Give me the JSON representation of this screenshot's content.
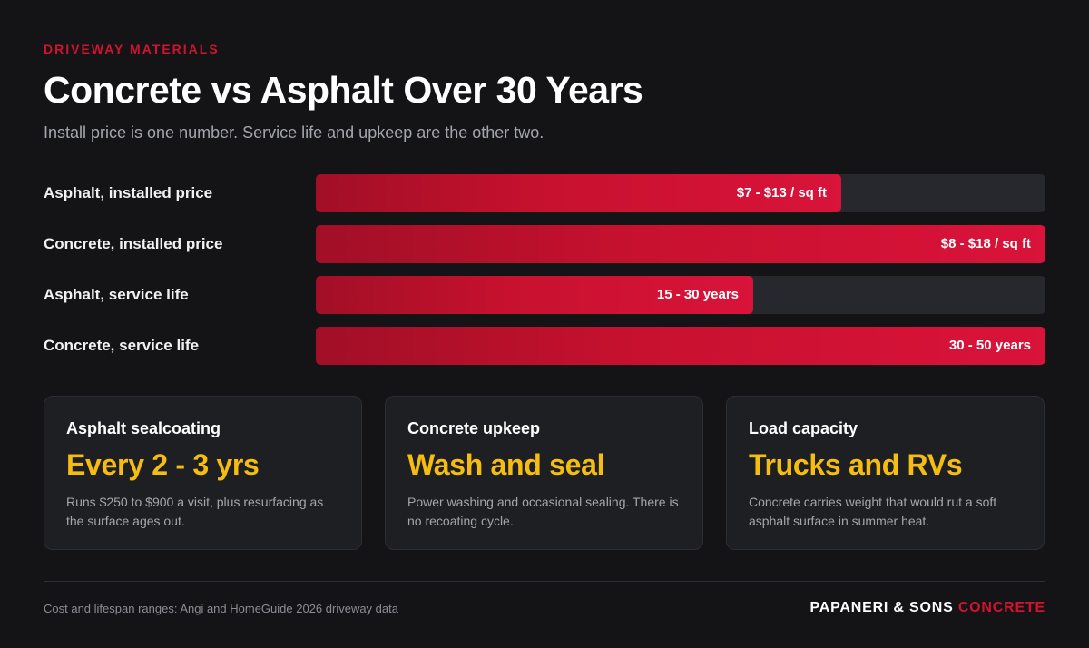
{
  "header": {
    "eyebrow": "DRIVEWAY MATERIALS",
    "title": "Concrete vs Asphalt Over 30 Years",
    "subtitle": "Install price is one number. Service life and upkeep are the other two."
  },
  "chart_data": {
    "type": "bar",
    "orientation": "horizontal",
    "grid": false,
    "categories": [
      "Asphalt, installed price",
      "Concrete, installed price",
      "Asphalt, service life",
      "Concrete, service life"
    ],
    "bars": [
      {
        "label": "Asphalt, installed price",
        "value_label": "$7 - $13 / sq ft",
        "fill_fraction": 0.72
      },
      {
        "label": "Concrete, installed price",
        "value_label": "$8 - $18 / sq ft",
        "fill_fraction": 1.0
      },
      {
        "label": "Asphalt, service life",
        "value_label": "15 - 30 years",
        "fill_fraction": 0.6
      },
      {
        "label": "Concrete, service life",
        "value_label": "30 - 50 years",
        "fill_fraction": 1.0
      }
    ],
    "colors": {
      "bar": "#d2132f",
      "track": "#26282d"
    }
  },
  "cards": [
    {
      "title": "Asphalt sealcoating",
      "value": "Every 2 - 3 yrs",
      "desc": "Runs $250 to $900 a visit, plus resurfacing as the surface ages out."
    },
    {
      "title": "Concrete upkeep",
      "value": "Wash and seal",
      "desc": "Power washing and occasional sealing. There is no recoating cycle."
    },
    {
      "title": "Load capacity",
      "value": "Trucks and RVs",
      "desc": "Concrete carries weight that would rut a soft asphalt surface in summer heat."
    }
  ],
  "footer": {
    "source": "Cost and lifespan ranges: Angi and HomeGuide 2026 driveway data",
    "brand_main": "PAPANERI & SONS",
    "brand_accent": "CONCRETE"
  },
  "colors": {
    "accent": "#d2132f",
    "highlight": "#f5bd12",
    "background": "#141416"
  }
}
